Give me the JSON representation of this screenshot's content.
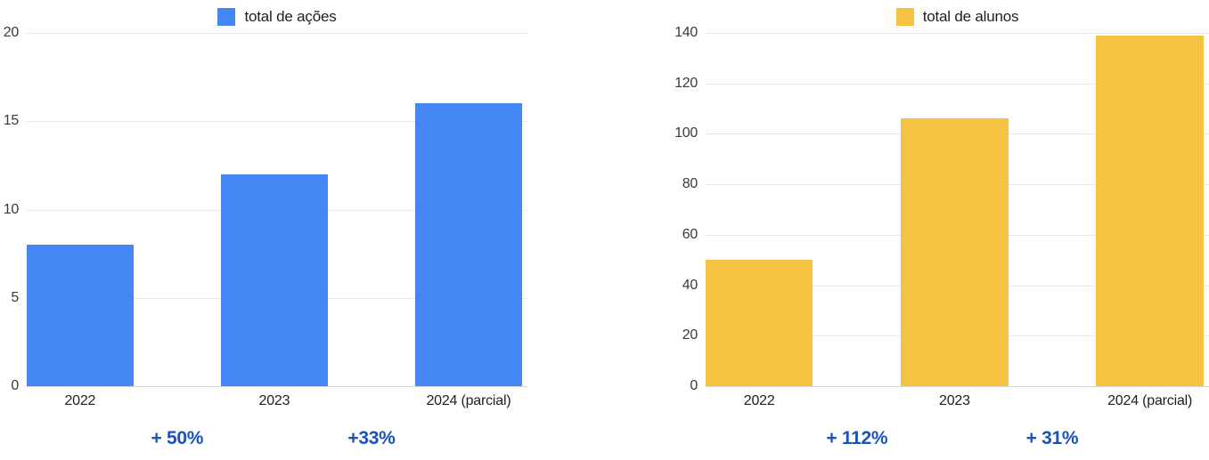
{
  "page": {
    "background": "#ffffff"
  },
  "colors": {
    "annotation_blue": "#1a52be",
    "grid_line": "#e9e9e9",
    "baseline": "#d6d6d6",
    "axis_text": "#3a3a3a",
    "label_text": "#1f1f1f",
    "blue_bar": "#4386f4",
    "yellow_bar": "#f5c342"
  },
  "chart_data": [
    {
      "type": "bar",
      "legend": "total de ações",
      "legend_position": "top",
      "bar_color": "#4386f4",
      "categories": [
        "2022",
        "2023",
        "2024 (parcial)"
      ],
      "values": [
        8,
        12,
        16
      ],
      "ylim": [
        0,
        20
      ],
      "yticks": [
        0,
        5,
        10,
        15,
        20
      ],
      "grid": true,
      "annotations": [
        {
          "label": "+ 50%",
          "between": [
            0,
            1
          ]
        },
        {
          "label": "+33%",
          "between": [
            1,
            2
          ]
        }
      ]
    },
    {
      "type": "bar",
      "legend": "total de alunos",
      "legend_position": "top",
      "bar_color": "#f5c342",
      "categories": [
        "2022",
        "2023",
        "2024 (parcial)"
      ],
      "values": [
        50,
        106,
        139
      ],
      "ylim": [
        0,
        140
      ],
      "yticks": [
        0,
        20,
        40,
        60,
        80,
        100,
        120,
        140
      ],
      "grid": true,
      "annotations": [
        {
          "label": "+ 112%",
          "between": [
            0,
            1
          ]
        },
        {
          "label": "+ 31%",
          "between": [
            1,
            2
          ]
        }
      ]
    }
  ]
}
